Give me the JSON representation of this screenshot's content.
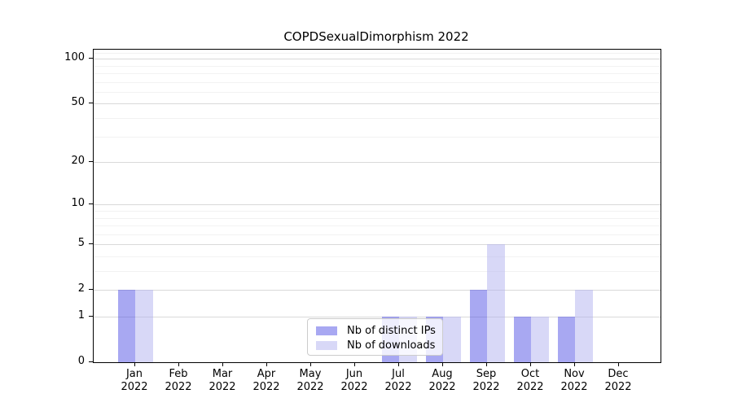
{
  "page": {
    "title": "COPDSexualDimorphism 2022"
  },
  "chart_data": {
    "type": "bar",
    "title": "COPDSexualDimorphism 2022",
    "categories": [
      "Jan 2022",
      "Feb 2022",
      "Mar 2022",
      "Apr 2022",
      "May 2022",
      "Jun 2022",
      "Jul 2022",
      "Aug 2022",
      "Sep 2022",
      "Oct 2022",
      "Nov 2022",
      "Dec 2022"
    ],
    "series": [
      {
        "name": "Nb of distinct IPs",
        "values": [
          2,
          0,
          0,
          0,
          0,
          0,
          1,
          1,
          2,
          1,
          1,
          0
        ],
        "color": "#5151e5",
        "alpha": 0.5,
        "rendered_color": "#a8a8f2"
      },
      {
        "name": "Nb of downloads",
        "values": [
          2,
          0,
          0,
          0,
          0,
          0,
          1,
          1,
          5,
          1,
          2,
          0
        ],
        "color": "#b1b1ef",
        "alpha": 0.5,
        "rendered_color": "#d8d8f7"
      }
    ],
    "xlabel": "",
    "ylabel": "",
    "y_axis": {
      "scale": "log1p",
      "ticks": [
        0,
        1,
        2,
        5,
        10,
        20,
        50,
        100
      ],
      "minor_ticks": [
        3,
        4,
        6,
        7,
        8,
        9,
        30,
        40,
        60,
        70,
        80,
        90,
        110
      ],
      "max": 115
    },
    "x_axis": {
      "tick_label_line1": [
        "Jan",
        "Feb",
        "Mar",
        "Apr",
        "May",
        "Jun",
        "Jul",
        "Aug",
        "Sep",
        "Oct",
        "Nov",
        "Dec"
      ],
      "tick_label_line2": "2022"
    },
    "legend": {
      "position": "bottom-center",
      "entries": [
        "Nb of distinct IPs",
        "Nb of downloads"
      ]
    },
    "grid": {
      "horizontal": true,
      "major_color": "#d9d9d9",
      "minor_color": "#f2f2f2"
    }
  }
}
